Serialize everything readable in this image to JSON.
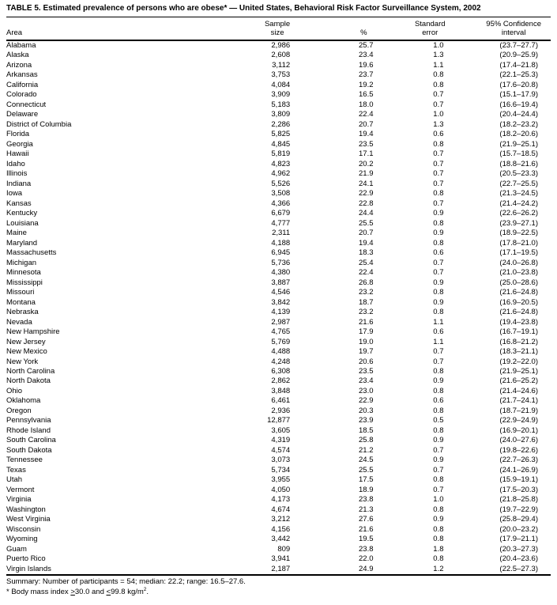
{
  "title": "TABLE 5. Estimated prevalence of persons who are obese* — United States, Behavioral Risk Factor Surveillance System, 2002",
  "table": {
    "headers": {
      "area": "Area",
      "sample_line1": "Sample",
      "sample_line2": "size",
      "percent": "%",
      "se_line1": "Standard",
      "se_line2": "error",
      "ci_line1": "95% Confidence",
      "ci_line2": "interval"
    },
    "columns": [
      "Area",
      "Sample size",
      "%",
      "Standard error",
      "95% Confidence interval"
    ],
    "rows": [
      [
        "Alabama",
        "2,986",
        "25.7",
        "1.0",
        "(23.7–27.7)"
      ],
      [
        "Alaska",
        "2,608",
        "23.4",
        "1.3",
        "(20.9–25.9)"
      ],
      [
        "Arizona",
        "3,112",
        "19.6",
        "1.1",
        "(17.4–21.8)"
      ],
      [
        "Arkansas",
        "3,753",
        "23.7",
        "0.8",
        "(22.1–25.3)"
      ],
      [
        "California",
        "4,084",
        "19.2",
        "0.8",
        "(17.6–20.8)"
      ],
      [
        "Colorado",
        "3,909",
        "16.5",
        "0.7",
        "(15.1–17.9)"
      ],
      [
        "Connecticut",
        "5,183",
        "18.0",
        "0.7",
        "(16.6–19.4)"
      ],
      [
        "Delaware",
        "3,809",
        "22.4",
        "1.0",
        "(20.4–24.4)"
      ],
      [
        "District of Columbia",
        "2,286",
        "20.7",
        "1.3",
        "(18.2–23.2)"
      ],
      [
        "Florida",
        "5,825",
        "19.4",
        "0.6",
        "(18.2–20.6)"
      ],
      [
        "Georgia",
        "4,845",
        "23.5",
        "0.8",
        "(21.9–25.1)"
      ],
      [
        "Hawaii",
        "5,819",
        "17.1",
        "0.7",
        "(15.7–18.5)"
      ],
      [
        "Idaho",
        "4,823",
        "20.2",
        "0.7",
        "(18.8–21.6)"
      ],
      [
        "Illinois",
        "4,962",
        "21.9",
        "0.7",
        "(20.5–23.3)"
      ],
      [
        "Indiana",
        "5,526",
        "24.1",
        "0.7",
        "(22.7–25.5)"
      ],
      [
        "Iowa",
        "3,508",
        "22.9",
        "0.8",
        "(21.3–24.5)"
      ],
      [
        "Kansas",
        "4,366",
        "22.8",
        "0.7",
        "(21.4–24.2)"
      ],
      [
        "Kentucky",
        "6,679",
        "24.4",
        "0.9",
        "(22.6–26.2)"
      ],
      [
        "Louisiana",
        "4,777",
        "25.5",
        "0.8",
        "(23.9–27.1)"
      ],
      [
        "Maine",
        "2,311",
        "20.7",
        "0.9",
        "(18.9–22.5)"
      ],
      [
        "Maryland",
        "4,188",
        "19.4",
        "0.8",
        "(17.8–21.0)"
      ],
      [
        "Massachusetts",
        "6,945",
        "18.3",
        "0.6",
        "(17.1–19.5)"
      ],
      [
        "Michigan",
        "5,736",
        "25.4",
        "0.7",
        "(24.0–26.8)"
      ],
      [
        "Minnesota",
        "4,380",
        "22.4",
        "0.7",
        "(21.0–23.8)"
      ],
      [
        "Mississippi",
        "3,887",
        "26.8",
        "0.9",
        "(25.0–28.6)"
      ],
      [
        "Missouri",
        "4,546",
        "23.2",
        "0.8",
        "(21.6–24.8)"
      ],
      [
        "Montana",
        "3,842",
        "18.7",
        "0.9",
        "(16.9–20.5)"
      ],
      [
        "Nebraska",
        "4,139",
        "23.2",
        "0.8",
        "(21.6–24.8)"
      ],
      [
        "Nevada",
        "2,987",
        "21.6",
        "1.1",
        "(19.4–23.8)"
      ],
      [
        "New Hampshire",
        "4,765",
        "17.9",
        "0.6",
        "(16.7–19.1)"
      ],
      [
        "New Jersey",
        "5,769",
        "19.0",
        "1.1",
        "(16.8–21.2)"
      ],
      [
        "New Mexico",
        "4,488",
        "19.7",
        "0.7",
        "(18.3–21.1)"
      ],
      [
        "New York",
        "4,248",
        "20.6",
        "0.7",
        "(19.2–22.0)"
      ],
      [
        "North Carolina",
        "6,308",
        "23.5",
        "0.8",
        "(21.9–25.1)"
      ],
      [
        "North Dakota",
        "2,862",
        "23.4",
        "0.9",
        "(21.6–25.2)"
      ],
      [
        "Ohio",
        "3,848",
        "23.0",
        "0.8",
        "(21.4–24.6)"
      ],
      [
        "Oklahoma",
        "6,461",
        "22.9",
        "0.6",
        "(21.7–24.1)"
      ],
      [
        "Oregon",
        "2,936",
        "20.3",
        "0.8",
        "(18.7–21.9)"
      ],
      [
        "Pennsylvania",
        "12,877",
        "23.9",
        "0.5",
        "(22.9–24.9)"
      ],
      [
        "Rhode Island",
        "3,605",
        "18.5",
        "0.8",
        "(16.9–20.1)"
      ],
      [
        "South Carolina",
        "4,319",
        "25.8",
        "0.9",
        "(24.0–27.6)"
      ],
      [
        "South Dakota",
        "4,574",
        "21.2",
        "0.7",
        "(19.8–22.6)"
      ],
      [
        "Tennessee",
        "3,073",
        "24.5",
        "0.9",
        "(22.7–26.3)"
      ],
      [
        "Texas",
        "5,734",
        "25.5",
        "0.7",
        "(24.1–26.9)"
      ],
      [
        "Utah",
        "3,955",
        "17.5",
        "0.8",
        "(15.9–19.1)"
      ],
      [
        "Vermont",
        "4,050",
        "18.9",
        "0.7",
        "(17.5–20.3)"
      ],
      [
        "Virginia",
        "4,173",
        "23.8",
        "1.0",
        "(21.8–25.8)"
      ],
      [
        "Washington",
        "4,674",
        "21.3",
        "0.8",
        "(19.7–22.9)"
      ],
      [
        "West Virginia",
        "3,212",
        "27.6",
        "0.9",
        "(25.8–29.4)"
      ],
      [
        "Wisconsin",
        "4,156",
        "21.6",
        "0.8",
        "(20.0–23.2)"
      ],
      [
        "Wyoming",
        "3,442",
        "19.5",
        "0.8",
        "(17.9–21.1)"
      ],
      [
        "Guam",
        "809",
        "23.8",
        "1.8",
        "(20.3–27.3)"
      ],
      [
        "Puerto Rico",
        "3,941",
        "22.0",
        "0.8",
        "(20.4–23.6)"
      ],
      [
        "Virgin Islands",
        "2,187",
        "24.9",
        "1.2",
        "(22.5–27.3)"
      ]
    ]
  },
  "footnotes": {
    "summary": "Summary: Number of participants = 54; median: 22.2; range: 16.5–27.6.",
    "bmi": {
      "prefix": "* Body mass index ",
      "ge": ">",
      "mid": "30.0 and ",
      "le": "<",
      "unit": "99.8 kg/m",
      "sup": "2",
      "period": "."
    }
  }
}
